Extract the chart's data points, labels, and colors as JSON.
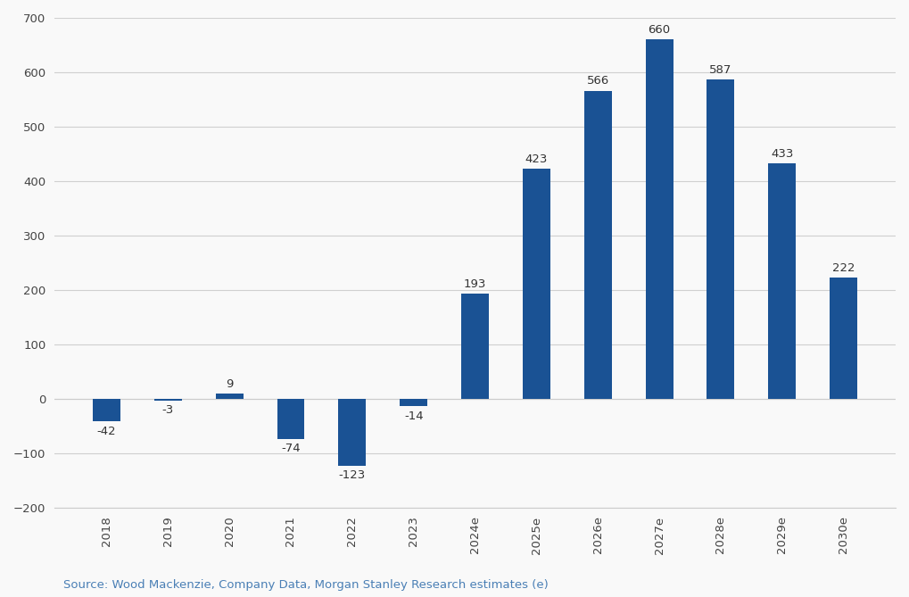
{
  "categories": [
    "2018",
    "2019",
    "2020",
    "2021",
    "2022",
    "2023",
    "2024e",
    "2025e",
    "2026e",
    "2027e",
    "2028e",
    "2029e",
    "2030e"
  ],
  "values": [
    -42,
    -3,
    9,
    -74,
    -123,
    -14,
    193,
    423,
    566,
    660,
    587,
    433,
    222
  ],
  "bar_color": "#1a5294",
  "background_color": "#f9f9f9",
  "ylim": [
    -200,
    700
  ],
  "yticks": [
    -200,
    -100,
    0,
    100,
    200,
    300,
    400,
    500,
    600,
    700
  ],
  "source_text": "Source: Wood Mackenzie, Company Data, Morgan Stanley Research estimates (e)",
  "label_fontsize": 9.5,
  "tick_fontsize": 9.5,
  "source_fontsize": 9.5,
  "bar_width": 0.45,
  "grid_color": "#d0d0d0",
  "grid_linewidth": 0.8,
  "spine_color": "#cccccc",
  "label_color": "#333333",
  "source_color": "#4a7fb5"
}
